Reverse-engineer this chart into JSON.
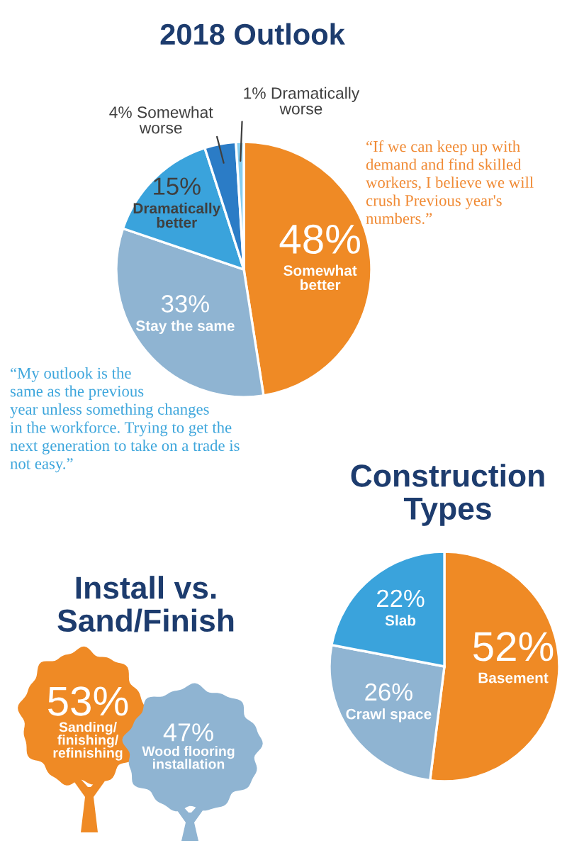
{
  "chart_data": [
    {
      "type": "pie",
      "title": "2018 Outlook",
      "categories": [
        "Somewhat\nbetter",
        "Stay the same",
        "Dramatically\nbetter",
        "Somewhat\nworse",
        "Dramatically\nworse"
      ],
      "values": [
        48,
        33,
        15,
        4,
        1
      ],
      "value_labels": [
        "48%",
        "33%",
        "15%",
        "4%",
        "1%"
      ],
      "colors": [
        "#ef8a25",
        "#8fb4d2",
        "#3aa3dc",
        "#2b7cc6",
        "#86cdee"
      ],
      "annotations": [
        "“If we can keep up with\ndemand and find skilled\nworkers, I believe we will\ncrush Previous year's\nnumbers.”",
        "“My outlook is the\nsame as the previous\nyear unless something changes\nin the workforce. Trying to get the\nnext generation to take on a trade is\nnot easy.”"
      ]
    },
    {
      "type": "pie",
      "title": "Construction\nTypes",
      "categories": [
        "Basement",
        "Crawl space",
        "Slab"
      ],
      "values": [
        52,
        26,
        22
      ],
      "value_labels": [
        "52%",
        "26%",
        "22%"
      ],
      "colors": [
        "#ef8a25",
        "#8fb4d2",
        "#3aa3dc"
      ]
    },
    {
      "type": "other",
      "title": "Install vs.\nSand/Finish",
      "categories": [
        "Sanding/\nfinishing/\nrefinishing",
        "Wood flooring\ninstallation"
      ],
      "values": [
        53,
        47
      ],
      "value_labels": [
        "53%",
        "47%"
      ],
      "colors": [
        "#ef8a25",
        "#8fb4d2"
      ]
    }
  ]
}
